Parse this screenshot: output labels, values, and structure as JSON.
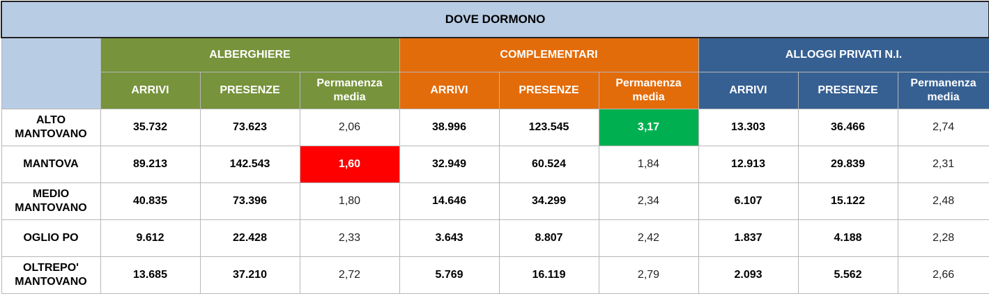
{
  "title": "DOVE DORMONO",
  "groups": [
    {
      "label": "ALBERGHIERE",
      "color": "#77933c"
    },
    {
      "label": "COMPLEMENTARI",
      "color": "#e36c0a"
    },
    {
      "label": "ALLOGGI PRIVATI N.I.",
      "color": "#366092"
    }
  ],
  "subheaders": {
    "arrivi": "ARRIVI",
    "presenze": "PRESENZE",
    "perm_line1": "Permanenza",
    "perm_line2": "media"
  },
  "highlight_colors": {
    "low": "#ff0000",
    "high": "#00b050"
  },
  "rows": [
    {
      "label1": "ALTO",
      "label2": "MANTOVANO",
      "values": [
        "35.732",
        "73.623",
        "2,06",
        "38.996",
        "123.545",
        "3,17",
        "13.303",
        "36.466",
        "2,74"
      ]
    },
    {
      "label1": "MANTOVA",
      "label2": "",
      "values": [
        "89.213",
        "142.543",
        "1,60",
        "32.949",
        "60.524",
        "1,84",
        "12.913",
        "29.839",
        "2,31"
      ]
    },
    {
      "label1": "MEDIO",
      "label2": "MANTOVANO",
      "values": [
        "40.835",
        "73.396",
        "1,80",
        "14.646",
        "34.299",
        "2,34",
        "6.107",
        "15.122",
        "2,48"
      ]
    },
    {
      "label1": "OGLIO PO",
      "label2": "",
      "values": [
        "9.612",
        "22.428",
        "2,33",
        "3.643",
        "8.807",
        "2,42",
        "1.837",
        "4.188",
        "2,28"
      ]
    },
    {
      "label1": "OLTREPO'",
      "label2": "MANTOVANO",
      "values": [
        "13.685",
        "37.210",
        "2,72",
        "5.769",
        "16.119",
        "2,79",
        "2.093",
        "5.562",
        "2,66"
      ]
    }
  ]
}
